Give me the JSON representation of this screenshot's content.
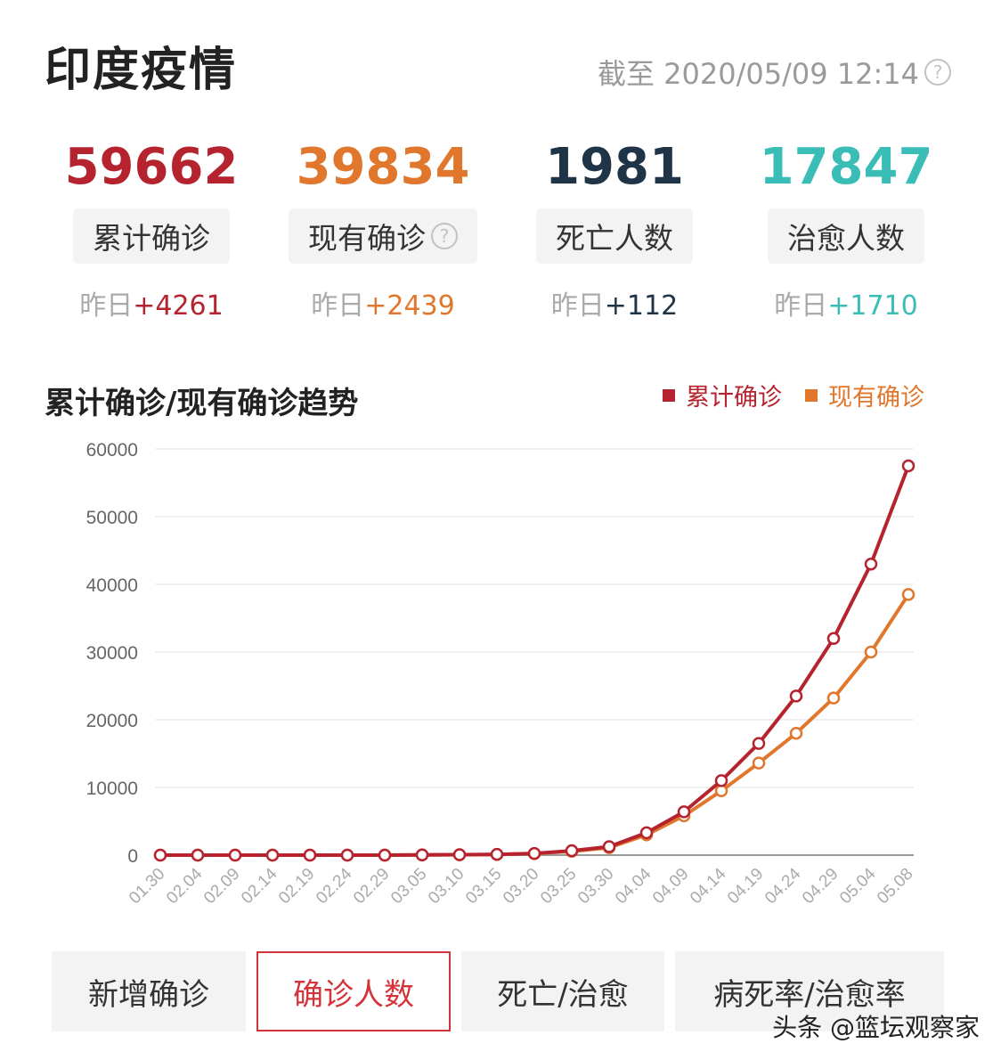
{
  "header": {
    "title": "印度疫情",
    "as_of": "截至 2020/05/09 12:14",
    "help_icon": "help-circle-icon"
  },
  "stats": [
    {
      "value": "59662",
      "label": "累计确诊",
      "delta_prefix": "昨日",
      "delta_value": "+4261",
      "color": "#b5232f",
      "has_help": false
    },
    {
      "value": "39834",
      "label": "现有确诊",
      "delta_prefix": "昨日",
      "delta_value": "+2439",
      "color": "#e0772c",
      "has_help": true
    },
    {
      "value": "1981",
      "label": "死亡人数",
      "delta_prefix": "昨日",
      "delta_value": "+112",
      "color": "#1f3447",
      "has_help": false
    },
    {
      "value": "17847",
      "label": "治愈人数",
      "delta_prefix": "昨日",
      "delta_value": "+1710",
      "color": "#3bbdb7",
      "has_help": false
    }
  ],
  "chart_title": "累计确诊/现有确诊趋势",
  "legend": [
    {
      "name": "累计确诊",
      "color": "#b5232f"
    },
    {
      "name": "现有确诊",
      "color": "#e0772c"
    }
  ],
  "chart_data": {
    "type": "line",
    "title": "累计确诊/现有确诊趋势",
    "xlabel": "",
    "ylabel": "",
    "ylim": [
      0,
      60000
    ],
    "yticks": [
      0,
      10000,
      20000,
      30000,
      40000,
      50000,
      60000
    ],
    "grid": true,
    "legend_position": "top-right",
    "x": [
      "01.30",
      "02.04",
      "02.09",
      "02.14",
      "02.19",
      "02.24",
      "02.29",
      "03.05",
      "03.10",
      "03.15",
      "03.20",
      "03.25",
      "03.30",
      "04.04",
      "04.09",
      "04.14",
      "04.19",
      "04.24",
      "04.29",
      "05.04",
      "05.08"
    ],
    "series": [
      {
        "name": "累计确诊",
        "color": "#b5232f",
        "values": [
          1,
          3,
          3,
          3,
          3,
          3,
          3,
          30,
          60,
          110,
          250,
          650,
          1250,
          3300,
          6400,
          11000,
          16500,
          23500,
          32000,
          43000,
          57500
        ]
      },
      {
        "name": "现有确诊",
        "color": "#e0772c",
        "values": [
          1,
          3,
          3,
          3,
          3,
          0,
          0,
          27,
          55,
          95,
          220,
          560,
          1100,
          3000,
          5800,
          9500,
          13600,
          18000,
          23200,
          30000,
          38500
        ]
      }
    ]
  },
  "tabs": [
    {
      "label": "新增确诊",
      "active": false
    },
    {
      "label": "确诊人数",
      "active": true
    },
    {
      "label": "死亡/治愈",
      "active": false
    },
    {
      "label": "病死率/治愈率",
      "active": false
    }
  ],
  "watermark": "头条 @篮坛观察家"
}
